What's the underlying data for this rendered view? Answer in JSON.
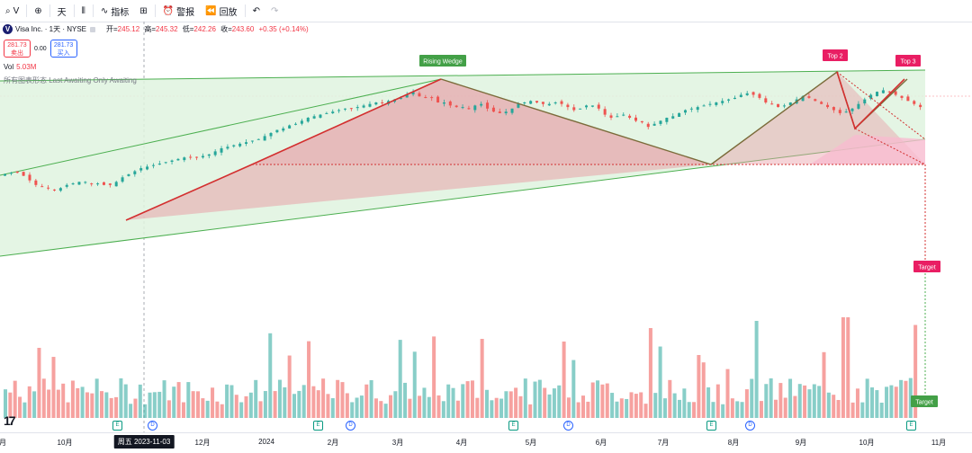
{
  "toolbar": {
    "symbol": "V",
    "interval": "天",
    "indicators": "指标",
    "alert": "警报",
    "replay": "回放"
  },
  "legend": {
    "logo": "V",
    "name": "Visa Inc. · 1天 · NYSE",
    "open_label": "开=",
    "open": "245.12",
    "high_label": "高=",
    "high": "245.32",
    "low_label": "低=",
    "low": "242.26",
    "close_label": "收=",
    "close": "243.60",
    "change": "+0.35 (+0.14%)"
  },
  "quote": {
    "sell_price": "281.73",
    "sell_label": "卖出",
    "spread": "0.00",
    "buy_price": "281.73",
    "buy_label": "买入"
  },
  "volume": {
    "label": "Vol",
    "value": "5.03M"
  },
  "pattern_legend": "所有图表形态 Last Awaiting Only Awaiting",
  "labels": {
    "rising_wedge": "Rising Wedge",
    "top2": "Top 2",
    "top3": "Top 3",
    "target1": "Target",
    "target2": "Target"
  },
  "events": {
    "earnings": "E",
    "dividend": "D"
  },
  "xaxis": {
    "labels": [
      "月",
      "10月",
      "12月",
      "2024",
      "2月",
      "3月",
      "4月",
      "5月",
      "6月",
      "7月",
      "8月",
      "9月",
      "10月",
      "11月"
    ],
    "crosshair_date": "周五 2023-11-03"
  },
  "colors": {
    "up": "#26a69a",
    "down": "#ef5350",
    "wedge_line": "#4caf50",
    "wedge_fill": "#dff3df",
    "pattern_fill": "#e8a0a8",
    "label_green": "#43a047",
    "label_pink": "#e91e63"
  },
  "chart_data": {
    "type": "candlestick",
    "symbol": "V",
    "closes": [
      233,
      234,
      234,
      232,
      229,
      226,
      225,
      224,
      223,
      224,
      226,
      227,
      228,
      228,
      227,
      227,
      226,
      226,
      228,
      231,
      233,
      235,
      237,
      238,
      239,
      240,
      241,
      242,
      243,
      244,
      244,
      244,
      245,
      246,
      248,
      250,
      251,
      252,
      253,
      254,
      255,
      256,
      258,
      260,
      262,
      263,
      265,
      266,
      268,
      270,
      271,
      272,
      273,
      274,
      275,
      276,
      276,
      277,
      278,
      279,
      280,
      280,
      281,
      282,
      283,
      285,
      287,
      284,
      283,
      283,
      280,
      280,
      278,
      277,
      277,
      276,
      278,
      279,
      276,
      274,
      273,
      274,
      276,
      279,
      280,
      281,
      280,
      279,
      279,
      280,
      279,
      277,
      275,
      276,
      278,
      278,
      276,
      272,
      270,
      271,
      272,
      270,
      268,
      267,
      264,
      266,
      268,
      270,
      271,
      273,
      275,
      276,
      277,
      278,
      279,
      280,
      281,
      282,
      283,
      285,
      286,
      285,
      283,
      280,
      279,
      277,
      278,
      280,
      282,
      284,
      283,
      281,
      279,
      277,
      275,
      273,
      274,
      276,
      279,
      282,
      285,
      287,
      288,
      287,
      285,
      283,
      281,
      279,
      277
    ]
  }
}
